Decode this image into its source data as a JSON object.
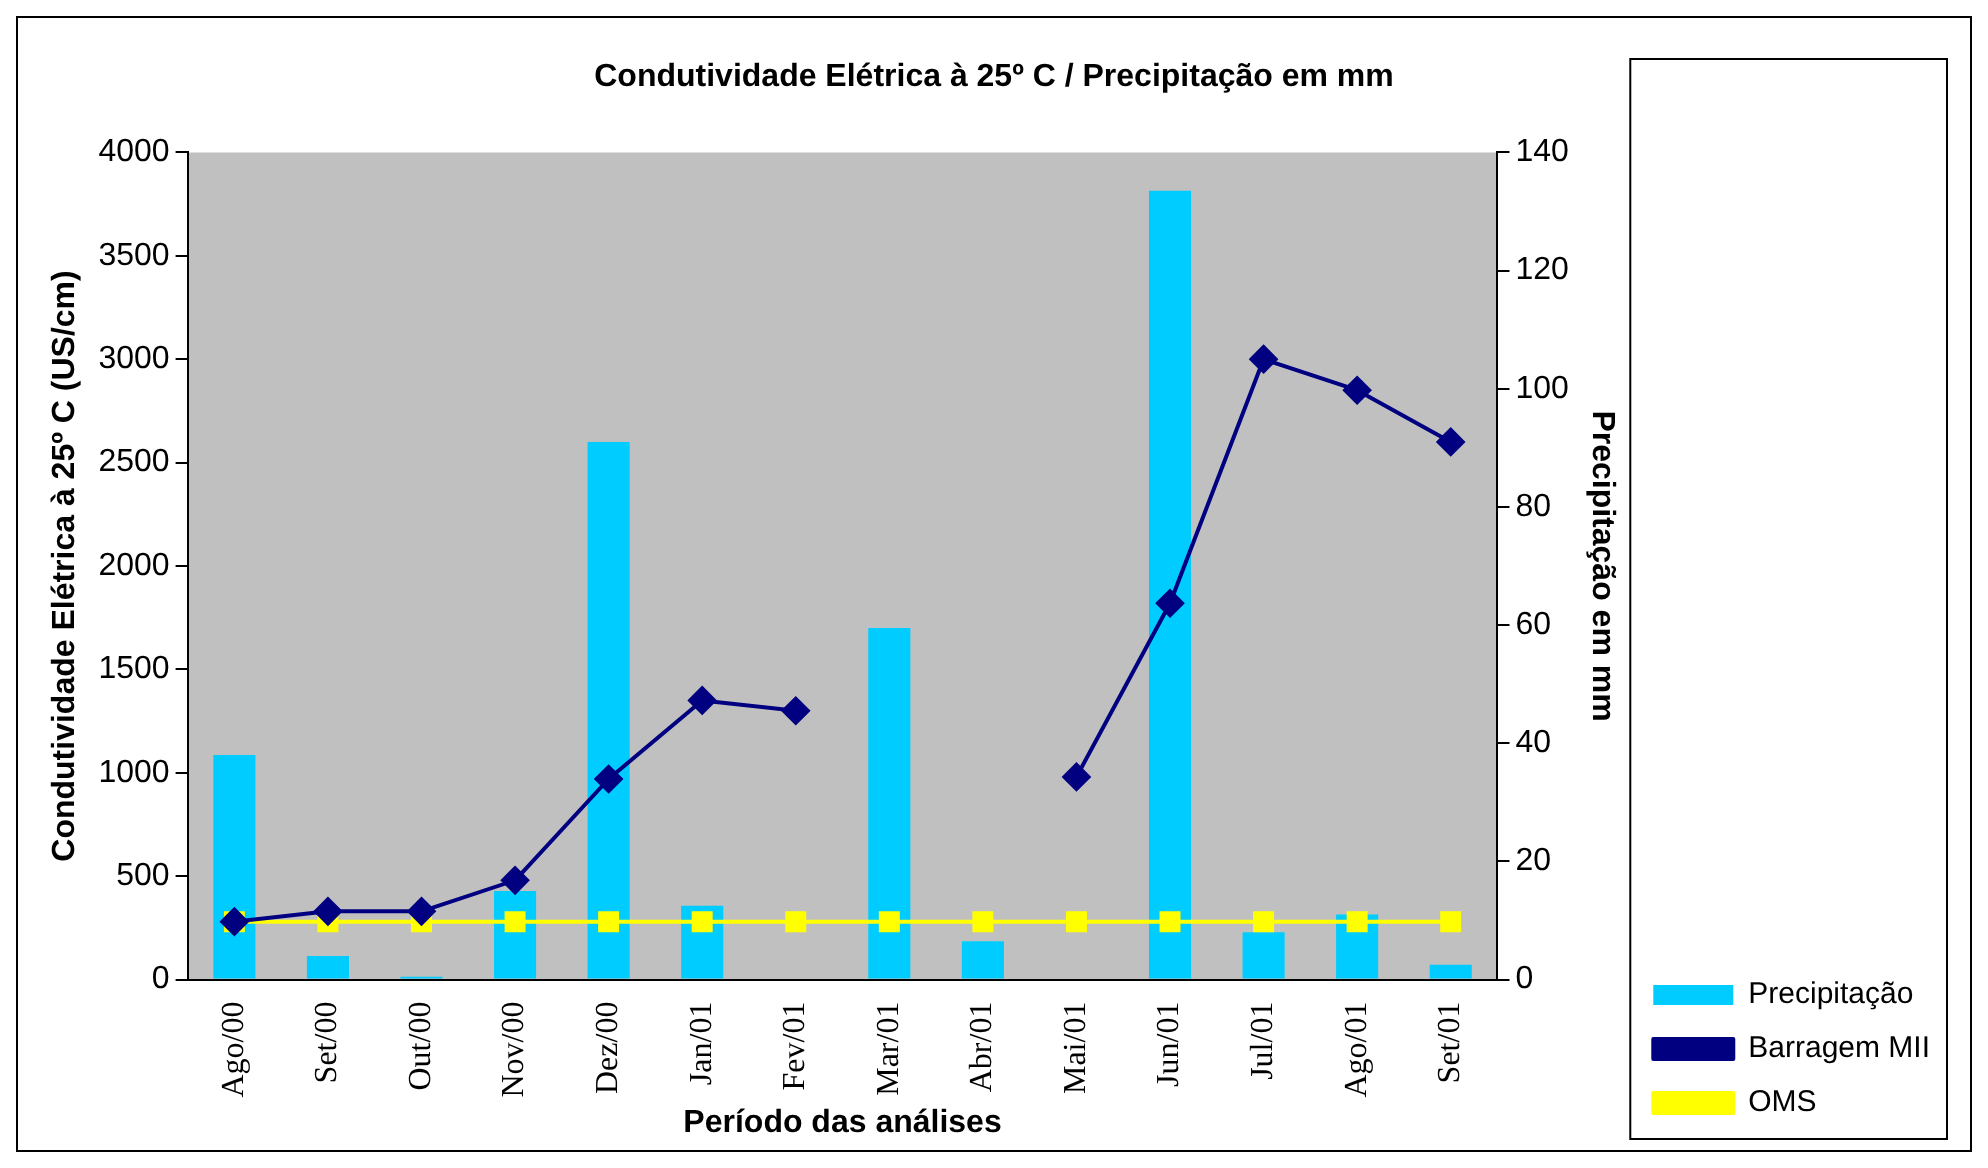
{
  "chart_data": {
    "type": "bar",
    "title": "Condutividade Elétrica à 25º C / Precipitação em mm",
    "xlabel": "Período das análises",
    "ylabel": "Condutividade Elétrica à 25º C (US/cm)",
    "y2label": "Precipitação em mm",
    "categories": [
      "Ago/00",
      "Set/00",
      "Out/00",
      "Nov/00",
      "Dez/00",
      "Jan/01",
      "Fev/01",
      "Mar/01",
      "Abr/01",
      "Mai/01",
      "Jun/01",
      "Jul/01",
      "Ago/01",
      "Set/01"
    ],
    "series": [
      {
        "name": "Precipitação",
        "axis": "y2",
        "color": "#00ccff",
        "values": [
          38,
          4,
          0.5,
          15,
          91,
          12.5,
          null,
          59.5,
          6.5,
          null,
          133.5,
          8,
          11,
          2.5
        ]
      },
      {
        "name": "Barragem MII",
        "type": "line",
        "color": "#000080",
        "marker": "diamond",
        "values": [
          280,
          330,
          330,
          480,
          970,
          1350,
          1300,
          null,
          null,
          980,
          1820,
          3000,
          2850,
          2600
        ]
      },
      {
        "name": "OMS",
        "type": "line",
        "color": "#ffff00",
        "marker": "square",
        "values": [
          280,
          280,
          280,
          280,
          280,
          280,
          280,
          280,
          280,
          280,
          280,
          280,
          280,
          280
        ]
      }
    ],
    "ylim": [
      0,
      4000
    ],
    "yticks": [
      0,
      500,
      1000,
      1500,
      2000,
      2500,
      3000,
      3500,
      4000
    ],
    "y2lim": [
      0,
      140
    ],
    "y2ticks": [
      0,
      20,
      40,
      60,
      80,
      100,
      120,
      140
    ],
    "grid": false,
    "legend": "bottom right"
  }
}
